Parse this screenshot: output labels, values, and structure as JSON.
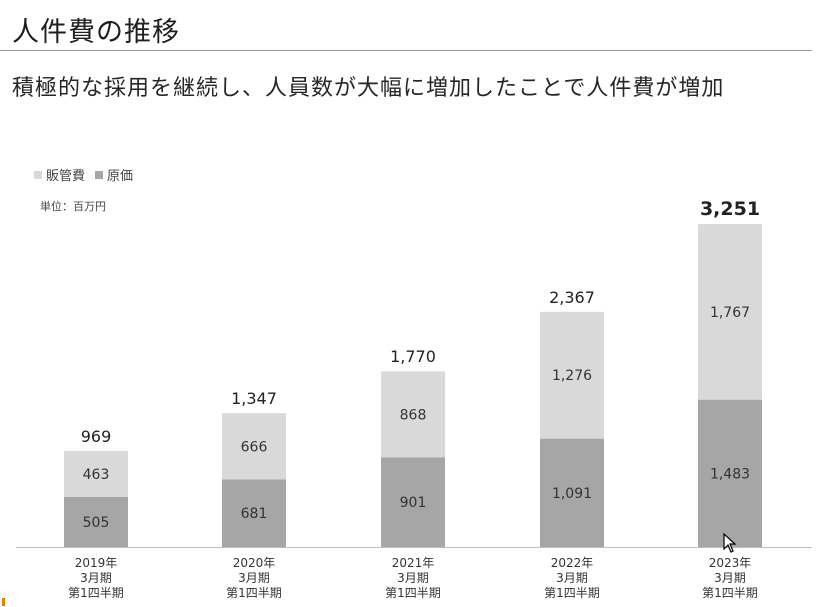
{
  "header": {
    "title": "人件費の推移",
    "subtitle": "積極的な採用を継続し、人員数が大幅に増加したことで人件費が増加"
  },
  "chart_data": {
    "type": "bar",
    "stacked": true,
    "categories": [
      [
        "2019年",
        "3月期",
        "第1四半期"
      ],
      [
        "2020年",
        "3月期",
        "第1四半期"
      ],
      [
        "2021年",
        "3月期",
        "第1四半期"
      ],
      [
        "2022年",
        "3月期",
        "第1四半期"
      ],
      [
        "2023年",
        "3月期",
        "第1四半期"
      ]
    ],
    "series": [
      {
        "name": "原価",
        "values": [
          505,
          681,
          901,
          1091,
          1483
        ],
        "color": "#a6a6a6"
      },
      {
        "name": "販管費",
        "values": [
          463,
          666,
          868,
          1276,
          1767
        ],
        "color": "#d9d9d9"
      }
    ],
    "series_labels": [
      [
        "505",
        "681",
        "901",
        "1,091",
        "1,483"
      ],
      [
        "463",
        "666",
        "868",
        "1,276",
        "1,767"
      ]
    ],
    "totals": [
      969,
      1347,
      1770,
      2367,
      3251
    ],
    "total_labels": [
      "969",
      "1,347",
      "1,770",
      "2,367",
      "3,251"
    ],
    "highlight_index": 4,
    "unit_label": "単位：百万円",
    "legend_position": "top-left",
    "ylim": [
      0,
      3251
    ],
    "grid": false
  }
}
